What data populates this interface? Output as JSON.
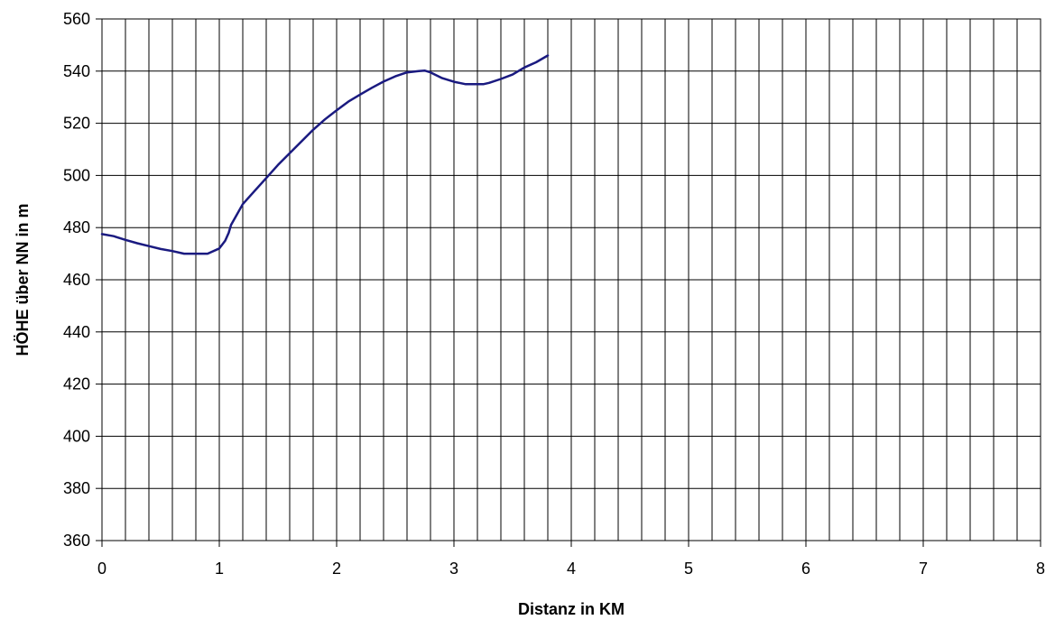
{
  "chart_data": {
    "type": "line",
    "title": "",
    "xlabel": "Distanz in KM",
    "ylabel": "HÖHE über NN in m",
    "xlim": [
      0,
      8
    ],
    "ylim": [
      360,
      560
    ],
    "x_ticks": [
      0,
      1,
      2,
      3,
      4,
      5,
      6,
      7,
      8
    ],
    "y_ticks": [
      360,
      380,
      400,
      420,
      440,
      460,
      480,
      500,
      520,
      540,
      560
    ],
    "x_minor_step": 0.2,
    "grid": true,
    "legend": "none",
    "series": [
      {
        "color": "#1a1a80",
        "x": [
          0,
          0.1,
          0.2,
          0.3,
          0.4,
          0.5,
          0.6,
          0.7,
          0.8,
          0.9,
          1.0,
          1.05,
          1.08,
          1.1,
          1.15,
          1.2,
          1.3,
          1.4,
          1.5,
          1.6,
          1.7,
          1.8,
          1.9,
          2.0,
          2.1,
          2.2,
          2.3,
          2.4,
          2.5,
          2.6,
          2.7,
          2.75,
          2.8,
          2.9,
          3.0,
          3.1,
          3.2,
          3.25,
          3.3,
          3.4,
          3.5,
          3.6,
          3.7,
          3.8
        ],
        "y": [
          477.5,
          476.7,
          475.3,
          474,
          472.9,
          471.8,
          471,
          470,
          470,
          470,
          472,
          475,
          478,
          481,
          485,
          489,
          494,
          499,
          504,
          508.5,
          513,
          517.5,
          521.5,
          525,
          528.3,
          531,
          533.6,
          536,
          538,
          539.5,
          540,
          540.2,
          539.5,
          537.3,
          535.9,
          535,
          535,
          535,
          535.5,
          537,
          538.7,
          541.4,
          543.4,
          546
        ]
      }
    ]
  }
}
